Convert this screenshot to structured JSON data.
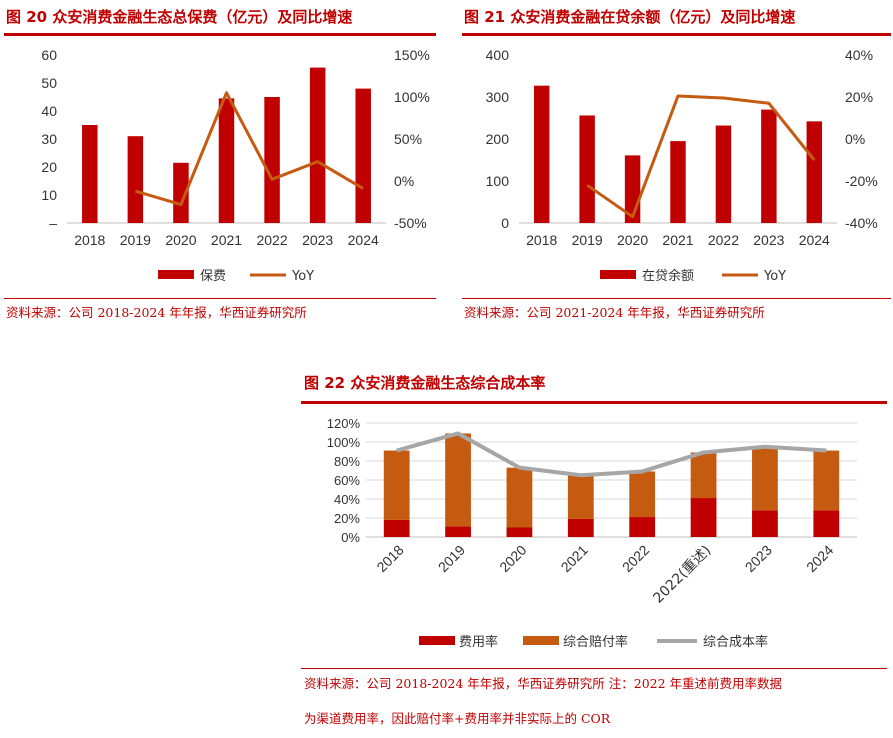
{
  "colors": {
    "bar_red": "#c00000",
    "bar_orange": "#c55a11",
    "line_orange": "#c55a11",
    "line_gray": "#a6a6a6",
    "accent": "#c00000"
  },
  "fig20": {
    "title": "图 20   众安消费金融生态总保费（亿元）及同比增速",
    "source": "资料来源：公司 2018-2024 年年报，华西证券研究所"
  },
  "fig21": {
    "title": "图 21   众安消费金融在贷余额（亿元）及同比增速",
    "source": "资料来源：公司 2021-2024 年年报，华西证券研究所"
  },
  "fig22": {
    "title": "图 22   众安消费金融生态综合成本率",
    "source_line1": "资料来源：公司 2018-2024 年年报，华西证券研究所    注：2022 年重述前费用率数据",
    "source_line2": "为渠道费用率，因此赔付率+费用率并非实际上的 COR"
  },
  "chart_data": [
    {
      "type": "bar",
      "categories": [
        "2018",
        "2019",
        "2020",
        "2021",
        "2022",
        "2023",
        "2024"
      ],
      "series": [
        {
          "name": "保费",
          "type": "bar",
          "axis": "left",
          "values": [
            35,
            31,
            21.5,
            44.5,
            45,
            55.5,
            48
          ]
        },
        {
          "name": "YoY",
          "type": "line",
          "axis": "right",
          "values": [
            null,
            -12,
            -28,
            105,
            2,
            23,
            -9
          ]
        }
      ],
      "y_left": {
        "range": [
          0,
          60
        ],
        "ticks": [
          "–",
          "10",
          "20",
          "30",
          "40",
          "50",
          "60"
        ]
      },
      "y_right": {
        "range": [
          -50,
          150
        ],
        "ticks": [
          "-50%",
          "0%",
          "50%",
          "100%",
          "150%"
        ]
      },
      "legend": "bottom",
      "grid": false
    },
    {
      "type": "bar",
      "categories": [
        "2018",
        "2019",
        "2020",
        "2021",
        "2022",
        "2023",
        "2024"
      ],
      "series": [
        {
          "name": "在贷余额",
          "type": "bar",
          "axis": "left",
          "values": [
            327,
            256,
            161,
            195,
            232,
            270,
            242
          ]
        },
        {
          "name": "YoY",
          "type": "line",
          "axis": "right",
          "values": [
            null,
            -22,
            -37,
            20.5,
            19.5,
            17,
            -10
          ]
        }
      ],
      "y_left": {
        "range": [
          0,
          400
        ],
        "ticks": [
          "0",
          "100",
          "200",
          "300",
          "400"
        ]
      },
      "y_right": {
        "range": [
          -40,
          40
        ],
        "ticks": [
          "-40%",
          "-20%",
          "0%",
          "20%",
          "40%"
        ]
      },
      "legend": "bottom",
      "grid": false
    },
    {
      "type": "bar",
      "stacked": true,
      "categories": [
        "2018",
        "2019",
        "2020",
        "2021",
        "2022",
        "2022(重述)",
        "2023",
        "2024"
      ],
      "series": [
        {
          "name": "费用率",
          "type": "bar",
          "values": [
            18,
            11,
            10,
            19,
            21,
            41,
            28,
            28
          ]
        },
        {
          "name": "综合赔付率",
          "type": "bar",
          "values": [
            73,
            98,
            63,
            46,
            48,
            48,
            67,
            63
          ]
        },
        {
          "name": "综合成本率",
          "type": "line",
          "values": [
            91,
            109,
            73,
            65,
            69,
            89,
            95,
            91
          ]
        }
      ],
      "y": {
        "range": [
          0,
          120
        ],
        "ticks": [
          "0%",
          "20%",
          "40%",
          "60%",
          "80%",
          "100%",
          "120%"
        ]
      },
      "legend": "bottom",
      "grid": true
    }
  ]
}
